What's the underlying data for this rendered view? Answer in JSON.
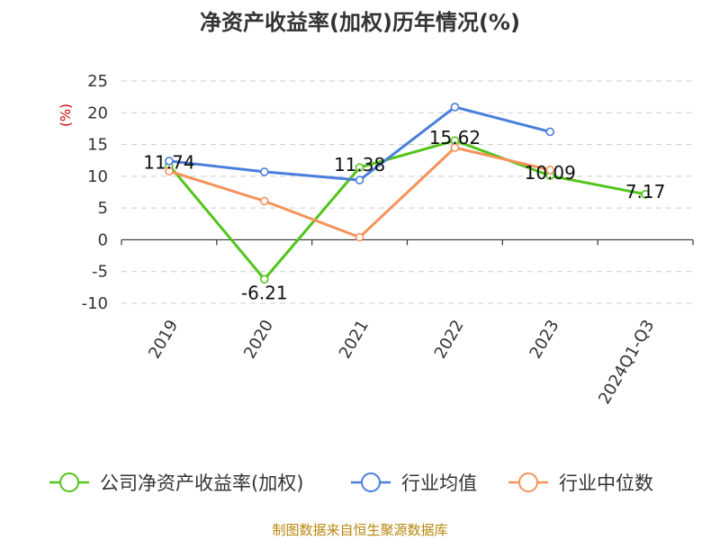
{
  "chart_data": {
    "type": "line",
    "title": "净资产收益率(加权)历年情况(%)",
    "ylabel": "(%)",
    "categories": [
      "2019",
      "2020",
      "2021",
      "2022",
      "2023",
      "2024Q1-Q3"
    ],
    "ylim": [
      -10,
      25
    ],
    "yticks": [
      "25",
      "20",
      "15",
      "10",
      "5",
      "0",
      "-5",
      "-10"
    ],
    "grid": true,
    "legend_position": "bottom",
    "series": [
      {
        "name": "公司净资产收益率(加权)",
        "color": "#52c41a",
        "values": [
          11.74,
          -6.21,
          11.38,
          15.62,
          10.09,
          7.17
        ],
        "labels": [
          "11.74",
          "-6.21",
          "11.38",
          "15.62",
          "10.09",
          "7.17"
        ]
      },
      {
        "name": "行业均值",
        "color": "#4a7fdc",
        "values": [
          12.4,
          10.7,
          9.4,
          20.9,
          17.0,
          null
        ]
      },
      {
        "name": "行业中位数",
        "color": "#f5935a",
        "values": [
          10.8,
          6.1,
          0.4,
          14.5,
          11.0,
          null
        ]
      }
    ],
    "source": "制图数据来自恒生聚源数据库"
  }
}
